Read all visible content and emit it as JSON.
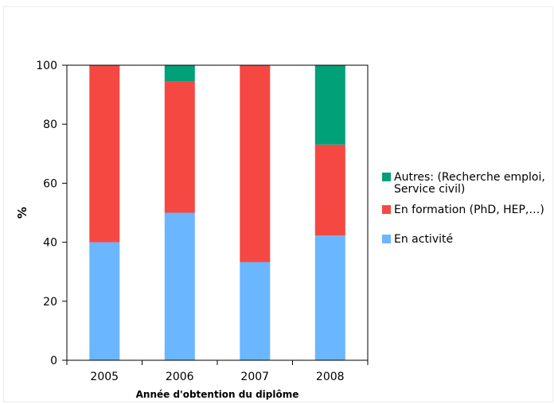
{
  "chart_data": {
    "type": "bar",
    "stacked": true,
    "categories": [
      "2005",
      "2006",
      "2007",
      "2008"
    ],
    "series": [
      {
        "name": "En activité",
        "color": "#6ab6ff",
        "values": [
          40,
          50,
          33.3,
          42.3
        ]
      },
      {
        "name": "En formation (PhD, HEP,…)",
        "color": "#f64842",
        "values": [
          60,
          44.4,
          66.7,
          30.8
        ]
      },
      {
        "name_lines": [
          "Autres: (Recherche emploi,",
          "Service civil)"
        ],
        "color": "#00a078",
        "values": [
          0,
          5.6,
          0,
          26.9
        ]
      }
    ],
    "xlabel": "Année d'obtention du diplôme",
    "ylabel": "%",
    "ylim": [
      0,
      100
    ],
    "yticks": [
      0,
      20,
      40,
      60,
      80,
      100
    ],
    "grid": false,
    "legend_position": "right"
  }
}
